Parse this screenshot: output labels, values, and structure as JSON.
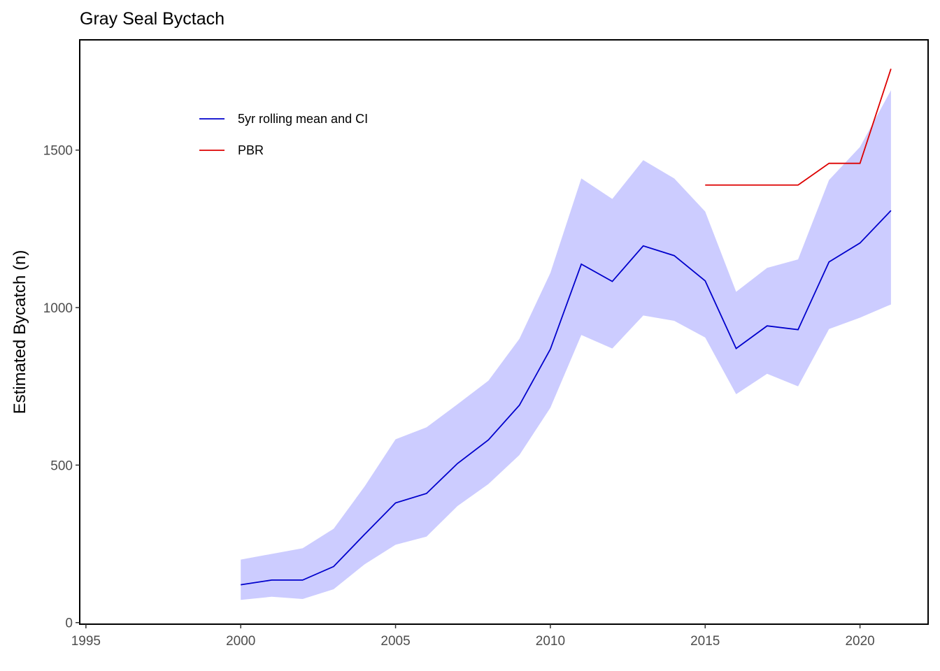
{
  "chart_data": {
    "type": "line",
    "title": "Gray Seal Byctach",
    "xlabel": "",
    "ylabel": "Estimated Bycatch (n)",
    "xlim": [
      1994.8,
      2022.2
    ],
    "ylim": [
      -5,
      1850
    ],
    "xticks": [
      1995,
      2000,
      2005,
      2010,
      2015,
      2020
    ],
    "yticks": [
      0,
      500,
      1000,
      1500
    ],
    "grid": false,
    "legend_position": "top-left",
    "series": [
      {
        "name": "5yr rolling mean and CI",
        "color": "#0000cc",
        "x": [
          2000,
          2001,
          2002,
          2003,
          2004,
          2005,
          2006,
          2007,
          2008,
          2009,
          2010,
          2011,
          2012,
          2013,
          2014,
          2015,
          2016,
          2017,
          2018,
          2019,
          2020,
          2021
        ],
        "values": [
          120,
          135,
          135,
          178,
          280,
          380,
          410,
          505,
          580,
          690,
          868,
          1138,
          1083,
          1196,
          1165,
          1085,
          870,
          942,
          930,
          1145,
          1205,
          1308
        ],
        "ci_lower": [
          72,
          82,
          75,
          106,
          185,
          247,
          273,
          370,
          440,
          532,
          682,
          913,
          870,
          975,
          958,
          905,
          725,
          790,
          750,
          932,
          968,
          1010
        ],
        "ci_upper": [
          200,
          218,
          236,
          298,
          432,
          582,
          620,
          693,
          768,
          901,
          1110,
          1410,
          1345,
          1468,
          1410,
          1305,
          1050,
          1126,
          1153,
          1405,
          1510,
          1690
        ],
        "ci_fill": "#ccccff"
      },
      {
        "name": "PBR",
        "color": "#dd0000",
        "x": [
          2015,
          2016,
          2017,
          2018,
          2019,
          2020,
          2021
        ],
        "values": [
          1389,
          1389,
          1389,
          1389,
          1458,
          1458,
          1758
        ]
      }
    ]
  }
}
